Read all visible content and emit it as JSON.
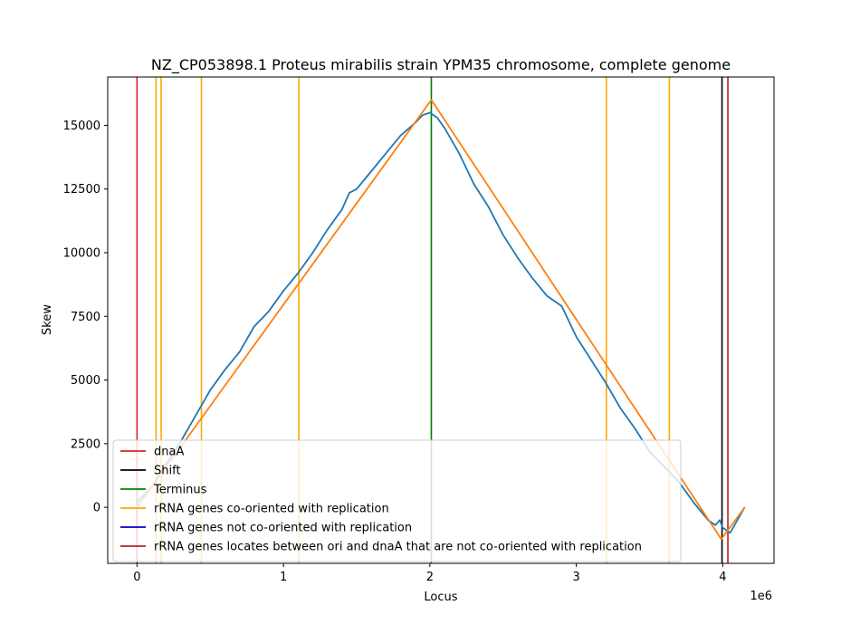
{
  "chart_data": {
    "type": "line",
    "title": "NZ_CP053898.1 Proteus mirabilis strain YPM35 chromosome, complete genome",
    "xlabel": "Locus",
    "ylabel": "Skew",
    "x_offset_label": "1e6",
    "xlim": [
      -200000,
      4350000
    ],
    "ylim": [
      -2200,
      16900
    ],
    "x_ticks": [
      0,
      1000000,
      2000000,
      3000000,
      4000000
    ],
    "x_tick_labels": [
      "0",
      "1",
      "2",
      "3",
      "4"
    ],
    "y_ticks": [
      0,
      2500,
      5000,
      7500,
      10000,
      12500,
      15000
    ],
    "y_tick_labels": [
      "0",
      "2500",
      "5000",
      "7500",
      "10000",
      "12500",
      "15000"
    ],
    "grid": false,
    "legend_position": "lower-left",
    "series": [
      {
        "role": "skew",
        "color": "#1f77b4",
        "x": [
          0,
          100000,
          200000,
          300000,
          400000,
          500000,
          600000,
          700000,
          800000,
          900000,
          1000000,
          1100000,
          1200000,
          1300000,
          1400000,
          1450000,
          1500000,
          1600000,
          1700000,
          1800000,
          1900000,
          1950000,
          2000000,
          2050000,
          2100000,
          2200000,
          2300000,
          2400000,
          2500000,
          2600000,
          2700000,
          2800000,
          2900000,
          3000000,
          3100000,
          3200000,
          3300000,
          3400000,
          3500000,
          3600000,
          3700000,
          3800000,
          3900000,
          3950000,
          3980000,
          4000000,
          4050000,
          4100000,
          4150000
        ],
        "y": [
          200,
          800,
          1700,
          2600,
          3600,
          4600,
          5400,
          6100,
          7100,
          7700,
          8500,
          9200,
          10000,
          10900,
          11700,
          12350,
          12500,
          13200,
          13900,
          14600,
          15100,
          15400,
          15500,
          15300,
          14900,
          13900,
          12700,
          11800,
          10700,
          9800,
          9000,
          8300,
          7900,
          6700,
          5800,
          4900,
          3900,
          3100,
          2200,
          1600,
          1000,
          200,
          -500,
          -700,
          -500,
          -800,
          -1000,
          -500,
          0
        ]
      },
      {
        "role": "fit",
        "color": "#ff7f0e",
        "x": [
          0,
          2010000,
          3990000,
          4150000
        ],
        "y": [
          0,
          16000,
          -1250,
          0
        ]
      }
    ],
    "vlines": [
      {
        "x": 0,
        "color": "#d62728",
        "category": "dnaA"
      },
      {
        "x": 130000,
        "color": "#ffa500",
        "category": "rRNA genes co-oriented with replication"
      },
      {
        "x": 165000,
        "color": "#ffa500",
        "category": "rRNA genes co-oriented with replication"
      },
      {
        "x": 440000,
        "color": "#ffa500",
        "category": "rRNA genes co-oriented with replication"
      },
      {
        "x": 1105000,
        "color": "#ffa500",
        "category": "rRNA genes co-oriented with replication"
      },
      {
        "x": 3205000,
        "color": "#ffa500",
        "category": "rRNA genes co-oriented with replication"
      },
      {
        "x": 3635000,
        "color": "#ffa500",
        "category": "rRNA genes co-oriented with replication"
      },
      {
        "x": 2010000,
        "color": "#008000",
        "category": "Terminus"
      },
      {
        "x": 3995000,
        "color": "#000000",
        "category": "Shift"
      },
      {
        "x": 4035000,
        "color": "#b22222",
        "category": "rRNA genes locates between ori and dnaA that are not co-oriented with replication"
      }
    ],
    "legend": [
      {
        "label": "dnaA",
        "color": "#d62728"
      },
      {
        "label": "Shift",
        "color": "#000000"
      },
      {
        "label": "Terminus",
        "color": "#008000"
      },
      {
        "label": "rRNA genes co-oriented with replication",
        "color": "#ffa500"
      },
      {
        "label": "rRNA genes not co-oriented with replication",
        "color": "#0000cd"
      },
      {
        "label": "rRNA genes locates between ori and dnaA that are not co-oriented with replication",
        "color": "#b22222"
      }
    ]
  }
}
